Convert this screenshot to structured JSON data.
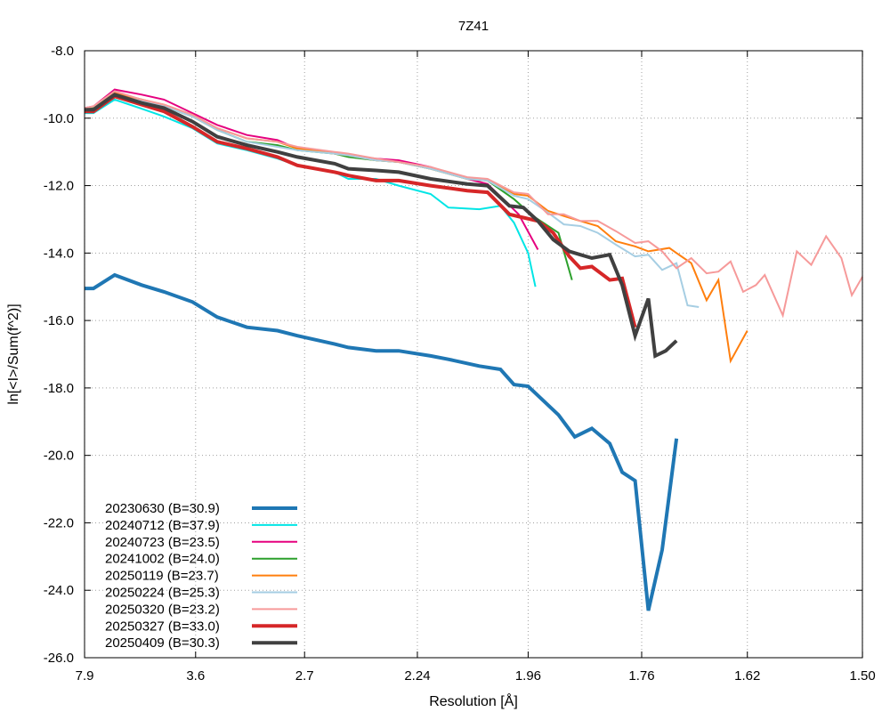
{
  "chart_data": {
    "type": "line",
    "title": "7Z41",
    "xlabel": "Resolution [Å]",
    "ylabel": "ln[<I>/Sum(f^2)]",
    "ylim": [
      -26.0,
      -8.0
    ],
    "x_domain_inv_d2": [
      0.016,
      0.4444
    ],
    "x_ticks": [
      "7.9",
      "3.6",
      "2.7",
      "2.24",
      "1.96",
      "1.76",
      "1.62",
      "1.50"
    ],
    "y_ticks": [
      "-8.0",
      "-10.0",
      "-12.0",
      "-14.0",
      "-16.0",
      "-18.0",
      "-20.0",
      "-22.0",
      "-24.0",
      "-26.0"
    ],
    "grid": true,
    "legend_position": "bottom-left",
    "series": [
      {
        "name": "20230630 (B=30.9)",
        "color": "#1f77b4",
        "width": 4,
        "x": [
          7.9,
          6.92,
          5.54,
          4.59,
          4.09,
          3.64,
          3.35,
          3.08,
          2.86,
          2.74,
          2.55,
          2.49,
          2.38,
          2.3,
          2.2,
          2.15,
          2.07,
          2.02,
          1.99,
          1.96,
          1.9,
          1.87,
          1.84,
          1.81,
          1.79,
          1.77,
          1.75,
          1.73,
          1.71
        ],
        "y": [
          -15.05,
          -15.05,
          -14.65,
          -14.95,
          -15.15,
          -15.45,
          -15.9,
          -16.2,
          -16.3,
          -16.45,
          -16.7,
          -16.8,
          -16.9,
          -16.9,
          -17.05,
          -17.15,
          -17.35,
          -17.45,
          -17.9,
          -17.95,
          -18.8,
          -19.45,
          -19.2,
          -19.65,
          -20.5,
          -20.75,
          -24.6,
          -22.8,
          -19.5
        ]
      },
      {
        "name": "20240712 (B=37.9)",
        "color": "#00e5e5",
        "width": 2,
        "x": [
          7.9,
          6.92,
          5.54,
          4.64,
          4.09,
          3.64,
          3.35,
          3.08,
          2.86,
          2.74,
          2.55,
          2.49,
          2.38,
          2.3,
          2.2,
          2.15,
          2.07,
          2.02,
          1.99,
          1.96,
          1.945
        ],
        "y": [
          -9.85,
          -9.85,
          -9.45,
          -9.7,
          -9.95,
          -10.3,
          -10.75,
          -10.95,
          -11.2,
          -11.4,
          -11.6,
          -11.8,
          -11.8,
          -12.0,
          -12.25,
          -12.65,
          -12.7,
          -12.6,
          -13.1,
          -14.0,
          -15.0
        ]
      },
      {
        "name": "20240723 (B=23.5)",
        "color": "#e5007f",
        "width": 2,
        "x": [
          7.9,
          6.92,
          5.54,
          4.59,
          4.09,
          3.64,
          3.35,
          3.08,
          2.86,
          2.74,
          2.55,
          2.49,
          2.38,
          2.3,
          2.2,
          2.1,
          2.05,
          1.98,
          1.94
        ],
        "y": [
          -9.7,
          -9.65,
          -9.15,
          -9.3,
          -9.45,
          -9.85,
          -10.2,
          -10.5,
          -10.65,
          -10.9,
          -11.05,
          -11.1,
          -11.2,
          -11.25,
          -11.45,
          -11.8,
          -11.95,
          -12.85,
          -13.9
        ]
      },
      {
        "name": "20241002 (B=24.0)",
        "color": "#2ca02c",
        "width": 2,
        "x": [
          7.9,
          6.92,
          5.54,
          4.59,
          4.09,
          3.64,
          3.35,
          3.08,
          2.86,
          2.74,
          2.55,
          2.49,
          2.38,
          2.3,
          2.2,
          2.1,
          2.05,
          1.99,
          1.95,
          1.9,
          1.875
        ],
        "y": [
          -9.75,
          -9.7,
          -9.25,
          -9.45,
          -9.65,
          -9.95,
          -10.35,
          -10.7,
          -10.8,
          -10.95,
          -11.05,
          -11.15,
          -11.25,
          -11.3,
          -11.5,
          -11.8,
          -11.85,
          -12.4,
          -12.9,
          -13.4,
          -14.8
        ]
      },
      {
        "name": "20250119 (B=23.7)",
        "color": "#ff7f0e",
        "width": 2,
        "x": [
          7.9,
          6.92,
          5.54,
          4.59,
          4.09,
          3.64,
          3.35,
          3.08,
          2.86,
          2.74,
          2.55,
          2.49,
          2.38,
          2.3,
          2.2,
          2.1,
          2.05,
          1.99,
          1.96,
          1.92,
          1.89,
          1.86,
          1.83,
          1.8,
          1.77,
          1.75,
          1.72,
          1.71,
          1.69,
          1.67,
          1.655,
          1.64,
          1.62
        ],
        "y": [
          -9.75,
          -9.75,
          -9.25,
          -9.45,
          -9.6,
          -9.9,
          -10.3,
          -10.6,
          -10.7,
          -10.9,
          -11.05,
          -11.1,
          -11.25,
          -11.3,
          -11.5,
          -11.8,
          -11.85,
          -12.25,
          -12.3,
          -12.75,
          -12.9,
          -13.05,
          -13.2,
          -13.65,
          -13.8,
          -13.95,
          -13.85,
          -14.0,
          -14.3,
          -15.4,
          -14.8,
          -17.2,
          -16.3
        ]
      },
      {
        "name": "20250224 (B=25.3)",
        "color": "#a6cee3",
        "width": 2,
        "x": [
          7.9,
          6.92,
          5.54,
          4.59,
          4.09,
          3.64,
          3.35,
          3.08,
          2.86,
          2.74,
          2.55,
          2.49,
          2.38,
          2.3,
          2.2,
          2.1,
          2.05,
          1.99,
          1.96,
          1.92,
          1.89,
          1.86,
          1.83,
          1.8,
          1.77,
          1.75,
          1.73,
          1.71,
          1.695,
          1.68
        ],
        "y": [
          -9.75,
          -9.75,
          -9.3,
          -9.5,
          -9.65,
          -9.95,
          -10.35,
          -10.7,
          -10.85,
          -10.95,
          -11.05,
          -11.1,
          -11.25,
          -11.3,
          -11.5,
          -11.8,
          -11.85,
          -12.3,
          -12.4,
          -12.8,
          -13.15,
          -13.2,
          -13.4,
          -13.75,
          -14.1,
          -14.05,
          -14.5,
          -14.3,
          -15.55,
          -15.6
        ]
      },
      {
        "name": "20250320 (B=23.2)",
        "color": "#f69a9a",
        "width": 2,
        "x": [
          7.9,
          6.92,
          5.54,
          4.59,
          4.09,
          3.64,
          3.35,
          3.08,
          2.86,
          2.74,
          2.55,
          2.49,
          2.38,
          2.3,
          2.2,
          2.1,
          2.05,
          1.99,
          1.96,
          1.92,
          1.89,
          1.86,
          1.83,
          1.8,
          1.77,
          1.75,
          1.73,
          1.71,
          1.69,
          1.67,
          1.655,
          1.64,
          1.625,
          1.61,
          1.6,
          1.58,
          1.565,
          1.55,
          1.535,
          1.52,
          1.51,
          1.5
        ],
        "y": [
          -9.7,
          -9.65,
          -9.2,
          -9.45,
          -9.6,
          -9.9,
          -10.3,
          -10.6,
          -10.7,
          -10.85,
          -11.0,
          -11.05,
          -11.2,
          -11.3,
          -11.45,
          -11.75,
          -11.8,
          -12.2,
          -12.25,
          -12.85,
          -12.85,
          -13.05,
          -13.05,
          -13.35,
          -13.7,
          -13.65,
          -13.95,
          -14.45,
          -14.15,
          -14.6,
          -14.55,
          -14.25,
          -15.15,
          -14.95,
          -14.65,
          -15.85,
          -13.95,
          -14.35,
          -13.5,
          -14.15,
          -15.25,
          -14.7
        ]
      },
      {
        "name": "20250327 (B=33.0)",
        "color": "#d62728",
        "width": 4,
        "x": [
          7.9,
          6.92,
          5.54,
          4.59,
          4.09,
          3.64,
          3.35,
          3.08,
          2.86,
          2.74,
          2.55,
          2.49,
          2.38,
          2.3,
          2.2,
          2.1,
          2.05,
          2.0,
          1.97,
          1.94,
          1.91,
          1.88,
          1.86,
          1.84,
          1.81,
          1.79,
          1.77
        ],
        "y": [
          -9.8,
          -9.8,
          -9.35,
          -9.6,
          -9.8,
          -10.25,
          -10.7,
          -10.9,
          -11.15,
          -11.4,
          -11.6,
          -11.7,
          -11.85,
          -11.85,
          -12.0,
          -12.15,
          -12.2,
          -12.85,
          -12.95,
          -13.05,
          -13.4,
          -14.1,
          -14.45,
          -14.4,
          -14.8,
          -14.75,
          -16.2
        ]
      },
      {
        "name": "20250409 (B=30.3)",
        "color": "#404040",
        "width": 4,
        "x": [
          7.9,
          6.92,
          5.54,
          4.59,
          4.09,
          3.64,
          3.35,
          3.08,
          2.86,
          2.74,
          2.55,
          2.49,
          2.38,
          2.3,
          2.2,
          2.1,
          2.05,
          2.0,
          1.97,
          1.94,
          1.91,
          1.88,
          1.86,
          1.84,
          1.81,
          1.79,
          1.77,
          1.75,
          1.74,
          1.725,
          1.71
        ],
        "y": [
          -9.75,
          -9.75,
          -9.3,
          -9.55,
          -9.7,
          -10.1,
          -10.55,
          -10.8,
          -11.0,
          -11.15,
          -11.35,
          -11.5,
          -11.55,
          -11.6,
          -11.8,
          -11.95,
          -12.0,
          -12.6,
          -12.65,
          -13.05,
          -13.6,
          -13.95,
          -14.05,
          -14.15,
          -14.05,
          -14.95,
          -16.45,
          -15.35,
          -17.05,
          -16.9,
          -16.6
        ]
      }
    ]
  }
}
